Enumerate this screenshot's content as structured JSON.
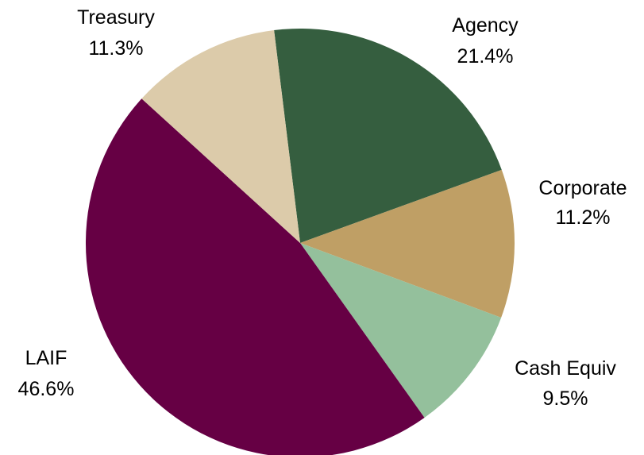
{
  "chart_data": {
    "type": "pie",
    "title": "",
    "slices": [
      {
        "name": "Agency",
        "value": 21.4,
        "label": "21.4%",
        "color": "#355e3f"
      },
      {
        "name": "Corporate",
        "value": 11.2,
        "label": "11.2%",
        "color": "#bf9f65"
      },
      {
        "name": "Cash Equiv",
        "value": 9.5,
        "label": "9.5%",
        "color": "#94c09c"
      },
      {
        "name": "LAIF",
        "value": 46.6,
        "label": "46.6%",
        "color": "#660044"
      },
      {
        "name": "Treasury",
        "value": 11.3,
        "label": "11.3%",
        "color": "#dccbaa"
      }
    ],
    "start_angle_deg": -7,
    "direction": "clockwise",
    "legend": "none"
  }
}
